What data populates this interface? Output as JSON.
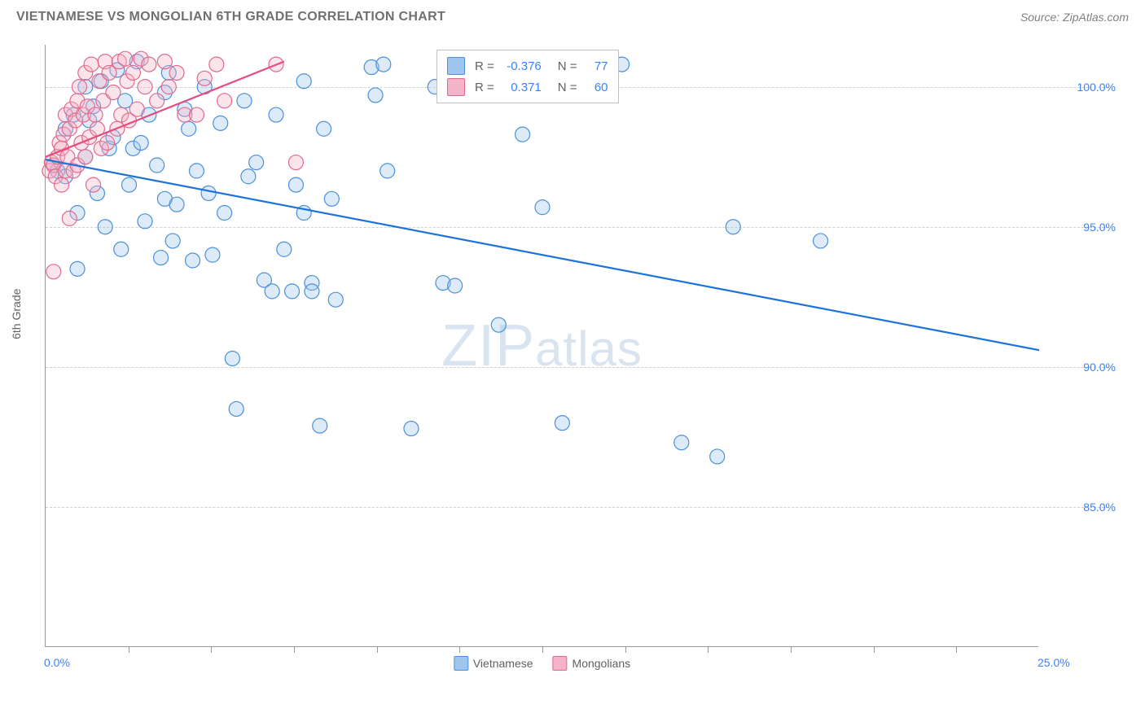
{
  "header": {
    "title": "VIETNAMESE VS MONGOLIAN 6TH GRADE CORRELATION CHART",
    "source": "Source: ZipAtlas.com"
  },
  "watermark": {
    "bold": "ZIP",
    "light": "atlas"
  },
  "chart": {
    "type": "scatter",
    "y_axis_label": "6th Grade",
    "background_color": "#ffffff",
    "grid_color": "#d0d0d0",
    "axis_color": "#999999",
    "xlim": [
      0,
      25
    ],
    "ylim": [
      80,
      101.5
    ],
    "y_ticks": [
      {
        "v": 85,
        "label": "85.0%"
      },
      {
        "v": 90,
        "label": "90.0%"
      },
      {
        "v": 95,
        "label": "95.0%"
      },
      {
        "v": 100,
        "label": "100.0%"
      }
    ],
    "x_ticks_minor": [
      2.08,
      4.17,
      6.25,
      8.33,
      10.42,
      12.5,
      14.58,
      16.67,
      18.75,
      20.83,
      22.92
    ],
    "x_tick_labels": [
      {
        "v": 0,
        "label": "0.0%"
      },
      {
        "v": 25,
        "label": "25.0%"
      }
    ],
    "marker_radius": 9,
    "marker_stroke_width": 1.2,
    "marker_fill_opacity": 0.35,
    "trend_line_width": 2.2,
    "series": [
      {
        "name": "Vietnamese",
        "color_fill": "#9ec5ee",
        "color_stroke": "#4a90d9",
        "r": "-0.376",
        "n": "77",
        "trend": {
          "x1": 0,
          "y1": 97.4,
          "x2": 25,
          "y2": 90.6,
          "color": "#1e73d8"
        },
        "points": [
          [
            0.2,
            97.2
          ],
          [
            0.3,
            97.0
          ],
          [
            0.5,
            98.5
          ],
          [
            0.5,
            96.8
          ],
          [
            0.7,
            99.0
          ],
          [
            0.8,
            95.5
          ],
          [
            0.8,
            93.5
          ],
          [
            1.0,
            100.0
          ],
          [
            1.0,
            97.5
          ],
          [
            1.1,
            98.8
          ],
          [
            1.2,
            99.3
          ],
          [
            1.3,
            96.2
          ],
          [
            1.4,
            100.2
          ],
          [
            1.5,
            95.0
          ],
          [
            1.6,
            97.8
          ],
          [
            1.7,
            98.2
          ],
          [
            1.8,
            100.6
          ],
          [
            1.9,
            94.2
          ],
          [
            2.0,
            99.5
          ],
          [
            2.1,
            96.5
          ],
          [
            2.2,
            97.8
          ],
          [
            2.3,
            100.9
          ],
          [
            2.4,
            98.0
          ],
          [
            2.5,
            95.2
          ],
          [
            2.6,
            99.0
          ],
          [
            2.8,
            97.2
          ],
          [
            2.9,
            93.9
          ],
          [
            3.0,
            96.0
          ],
          [
            3.1,
            100.5
          ],
          [
            3.2,
            94.5
          ],
          [
            3.3,
            95.8
          ],
          [
            3.5,
            99.2
          ],
          [
            3.6,
            98.5
          ],
          [
            3.7,
            93.8
          ],
          [
            3.8,
            97.0
          ],
          [
            4.0,
            100.0
          ],
          [
            4.1,
            96.2
          ],
          [
            4.2,
            94.0
          ],
          [
            4.4,
            98.7
          ],
          [
            4.5,
            95.5
          ],
          [
            4.7,
            90.3
          ],
          [
            4.8,
            88.5
          ],
          [
            5.0,
            99.5
          ],
          [
            5.1,
            96.8
          ],
          [
            5.3,
            97.3
          ],
          [
            5.5,
            93.1
          ],
          [
            5.7,
            92.7
          ],
          [
            5.8,
            99.0
          ],
          [
            6.0,
            94.2
          ],
          [
            6.2,
            92.7
          ],
          [
            6.3,
            96.5
          ],
          [
            6.5,
            100.2
          ],
          [
            6.5,
            95.5
          ],
          [
            6.7,
            93.0
          ],
          [
            6.7,
            92.7
          ],
          [
            6.9,
            87.9
          ],
          [
            7.0,
            98.5
          ],
          [
            7.2,
            96.0
          ],
          [
            7.3,
            92.4
          ],
          [
            8.2,
            100.7
          ],
          [
            8.3,
            99.7
          ],
          [
            8.5,
            100.8
          ],
          [
            8.6,
            97.0
          ],
          [
            9.2,
            87.8
          ],
          [
            9.8,
            100.0
          ],
          [
            10.0,
            93.0
          ],
          [
            10.3,
            92.9
          ],
          [
            11.4,
            91.5
          ],
          [
            12.0,
            98.3
          ],
          [
            12.5,
            95.7
          ],
          [
            14.5,
            100.8
          ],
          [
            16.0,
            87.3
          ],
          [
            16.9,
            86.8
          ],
          [
            17.3,
            95.0
          ],
          [
            19.5,
            94.5
          ],
          [
            13.0,
            88.0
          ],
          [
            3.0,
            99.8
          ]
        ]
      },
      {
        "name": "Mongolians",
        "color_fill": "#f5b3c7",
        "color_stroke": "#e06a8e",
        "r": "0.371",
        "n": "60",
        "trend": {
          "x1": 0,
          "y1": 97.5,
          "x2": 6.0,
          "y2": 100.9,
          "color": "#e84b7d"
        },
        "points": [
          [
            0.1,
            97.0
          ],
          [
            0.15,
            97.3
          ],
          [
            0.2,
            97.2
          ],
          [
            0.25,
            96.8
          ],
          [
            0.3,
            97.5
          ],
          [
            0.35,
            98.0
          ],
          [
            0.4,
            96.5
          ],
          [
            0.4,
            97.8
          ],
          [
            0.45,
            98.3
          ],
          [
            0.5,
            97.0
          ],
          [
            0.5,
            99.0
          ],
          [
            0.55,
            97.5
          ],
          [
            0.6,
            98.5
          ],
          [
            0.65,
            99.2
          ],
          [
            0.7,
            97.0
          ],
          [
            0.75,
            98.8
          ],
          [
            0.8,
            99.5
          ],
          [
            0.8,
            97.2
          ],
          [
            0.85,
            100.0
          ],
          [
            0.9,
            98.0
          ],
          [
            0.95,
            99.0
          ],
          [
            1.0,
            100.5
          ],
          [
            1.0,
            97.5
          ],
          [
            1.05,
            99.3
          ],
          [
            1.1,
            98.2
          ],
          [
            1.15,
            100.8
          ],
          [
            1.2,
            96.5
          ],
          [
            1.25,
            99.0
          ],
          [
            1.3,
            98.5
          ],
          [
            1.35,
            100.2
          ],
          [
            1.4,
            97.8
          ],
          [
            1.45,
            99.5
          ],
          [
            1.5,
            100.9
          ],
          [
            1.55,
            98.0
          ],
          [
            1.6,
            100.5
          ],
          [
            1.7,
            99.8
          ],
          [
            1.8,
            98.5
          ],
          [
            1.85,
            100.9
          ],
          [
            1.9,
            99.0
          ],
          [
            2.0,
            101.0
          ],
          [
            2.05,
            100.2
          ],
          [
            2.1,
            98.8
          ],
          [
            2.2,
            100.5
          ],
          [
            2.3,
            99.2
          ],
          [
            2.4,
            101.0
          ],
          [
            2.5,
            100.0
          ],
          [
            2.6,
            100.8
          ],
          [
            2.8,
            99.5
          ],
          [
            3.0,
            100.9
          ],
          [
            3.1,
            100.0
          ],
          [
            3.3,
            100.5
          ],
          [
            3.5,
            99.0
          ],
          [
            3.8,
            99.0
          ],
          [
            4.0,
            100.3
          ],
          [
            4.3,
            100.8
          ],
          [
            4.5,
            99.5
          ],
          [
            5.8,
            100.8
          ],
          [
            6.3,
            97.3
          ],
          [
            0.2,
            93.4
          ],
          [
            0.6,
            95.3
          ]
        ]
      }
    ],
    "legend_top_labels": {
      "r_label": "R =",
      "n_label": "N ="
    }
  }
}
